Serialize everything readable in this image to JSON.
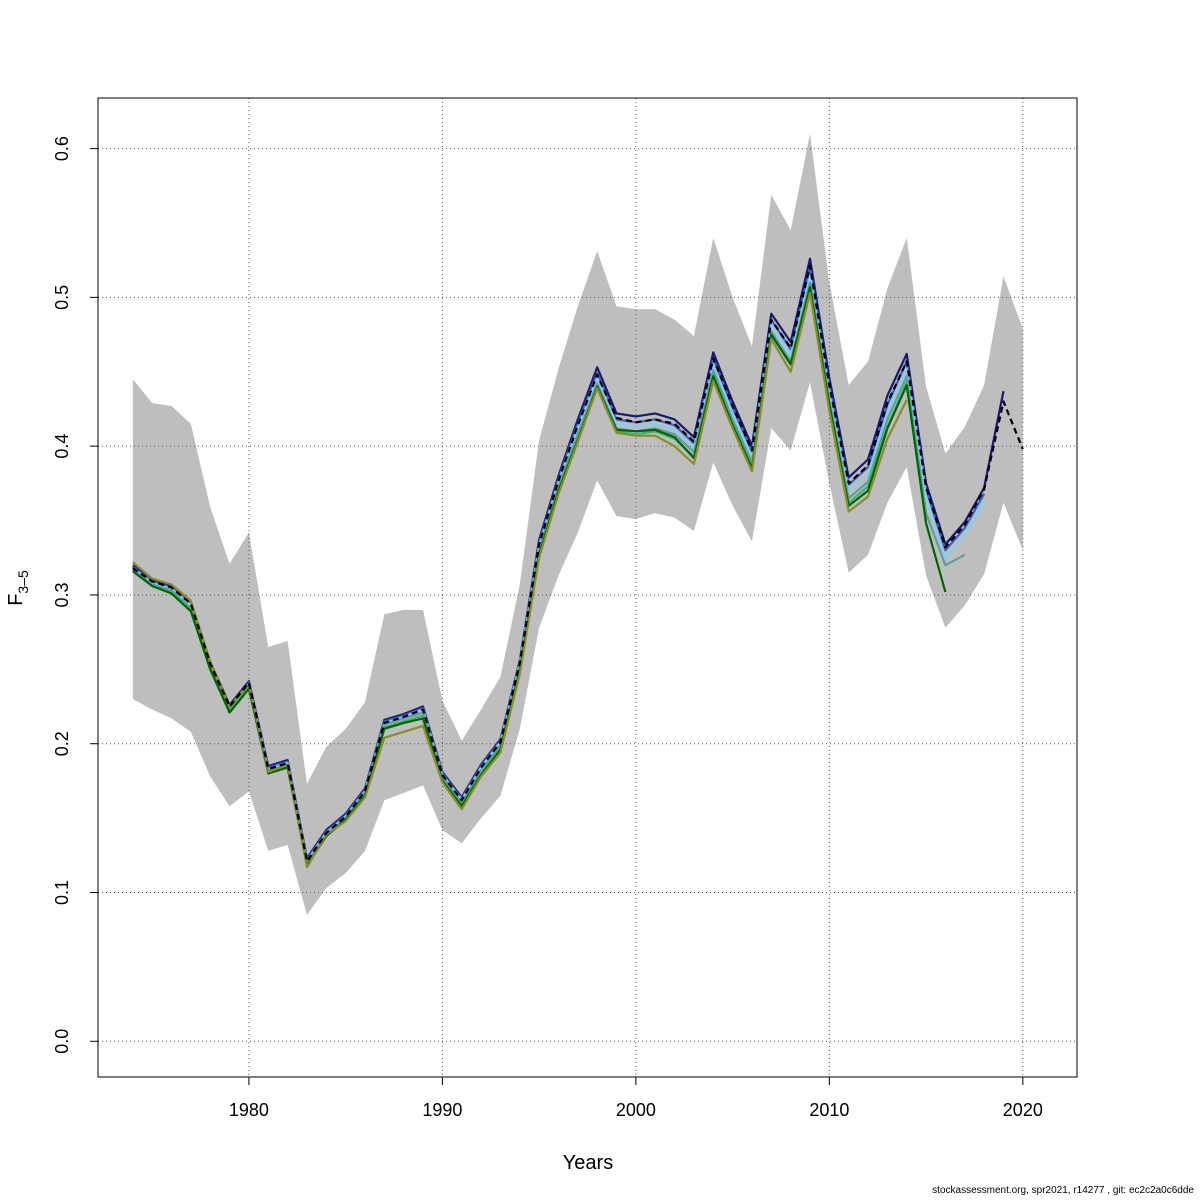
{
  "chart_data": {
    "type": "line",
    "title": "",
    "xlabel": "Years",
    "ylabel_main": "F",
    "ylabel_sub": "3–5",
    "xlim": [
      1972.2,
      2022.8
    ],
    "ylim": [
      -0.024,
      0.634
    ],
    "x_ticks": [
      1980,
      1990,
      2000,
      2010,
      2020
    ],
    "x_tick_labels": [
      "1980",
      "1990",
      "2000",
      "2010",
      "2020"
    ],
    "y_ticks": [
      0.0,
      0.1,
      0.2,
      0.3,
      0.4,
      0.5,
      0.6
    ],
    "y_tick_labels": [
      "0.0",
      "0.1",
      "0.2",
      "0.3",
      "0.4",
      "0.5",
      "0.6"
    ],
    "grid": true,
    "band_color": "#bebebe",
    "confidence_band": {
      "x": [
        1974,
        1975,
        1976,
        1977,
        1978,
        1979,
        1980,
        1981,
        1982,
        1983,
        1984,
        1985,
        1986,
        1987,
        1988,
        1989,
        1990,
        1991,
        1992,
        1993,
        1994,
        1995,
        1996,
        1997,
        1998,
        1999,
        2000,
        2001,
        2002,
        2003,
        2004,
        2005,
        2006,
        2007,
        2008,
        2009,
        2010,
        2011,
        2012,
        2013,
        2014,
        2015,
        2016,
        2017,
        2018,
        2019,
        2020
      ],
      "lower": [
        0.23,
        0.223,
        0.217,
        0.208,
        0.178,
        0.158,
        0.168,
        0.128,
        0.132,
        0.085,
        0.103,
        0.113,
        0.128,
        0.162,
        0.167,
        0.172,
        0.142,
        0.133,
        0.15,
        0.165,
        0.21,
        0.278,
        0.313,
        0.342,
        0.377,
        0.353,
        0.351,
        0.355,
        0.352,
        0.343,
        0.389,
        0.36,
        0.336,
        0.412,
        0.397,
        0.443,
        0.375,
        0.315,
        0.327,
        0.362,
        0.386,
        0.313,
        0.278,
        0.293,
        0.314,
        0.362,
        0.33
      ],
      "upper": [
        0.445,
        0.429,
        0.427,
        0.415,
        0.359,
        0.321,
        0.342,
        0.265,
        0.269,
        0.173,
        0.198,
        0.21,
        0.228,
        0.287,
        0.29,
        0.29,
        0.229,
        0.202,
        0.223,
        0.245,
        0.307,
        0.404,
        0.452,
        0.494,
        0.531,
        0.494,
        0.492,
        0.492,
        0.485,
        0.474,
        0.54,
        0.5,
        0.467,
        0.569,
        0.545,
        0.61,
        0.51,
        0.441,
        0.457,
        0.506,
        0.54,
        0.44,
        0.395,
        0.413,
        0.441,
        0.514,
        0.479
      ]
    },
    "series": [
      {
        "color": "#191970",
        "dashed": false,
        "x": [
          1974,
          1975,
          1976,
          1977,
          1978,
          1979,
          1980,
          1981,
          1982,
          1983,
          1984,
          1985,
          1986,
          1987,
          1988,
          1989,
          1990,
          1991,
          1992,
          1993,
          1994,
          1995,
          1996,
          1997,
          1998,
          1999,
          2000,
          2001,
          2002,
          2003,
          2004,
          2005,
          2006,
          2007,
          2008,
          2009,
          2010,
          2011,
          2012,
          2013,
          2014,
          2015,
          2016,
          2017,
          2018,
          2019
        ],
        "values": [
          0.32,
          0.31,
          0.306,
          0.295,
          0.255,
          0.226,
          0.242,
          0.185,
          0.189,
          0.123,
          0.142,
          0.153,
          0.17,
          0.216,
          0.22,
          0.225,
          0.181,
          0.164,
          0.186,
          0.203,
          0.256,
          0.337,
          0.38,
          0.418,
          0.453,
          0.422,
          0.42,
          0.422,
          0.418,
          0.406,
          0.463,
          0.43,
          0.4,
          0.489,
          0.47,
          0.526,
          0.446,
          0.379,
          0.391,
          0.434,
          0.462,
          0.375,
          0.334,
          0.349,
          0.372,
          0.437
        ]
      },
      {
        "color": "#3a5fcd",
        "dashed": false,
        "x": [
          1974,
          1975,
          1976,
          1977,
          1978,
          1979,
          1980,
          1981,
          1982,
          1983,
          1984,
          1985,
          1986,
          1987,
          1988,
          1989,
          1990,
          1991,
          1992,
          1993,
          1994,
          1995,
          1996,
          1997,
          1998,
          1999,
          2000,
          2001,
          2002,
          2003,
          2004,
          2005,
          2006,
          2007,
          2008,
          2009,
          2010,
          2011,
          2012,
          2013,
          2014,
          2015,
          2016,
          2017,
          2018
        ],
        "values": [
          0.319,
          0.309,
          0.305,
          0.294,
          0.254,
          0.225,
          0.241,
          0.184,
          0.188,
          0.122,
          0.141,
          0.152,
          0.169,
          0.215,
          0.219,
          0.224,
          0.18,
          0.163,
          0.185,
          0.202,
          0.255,
          0.335,
          0.378,
          0.415,
          0.449,
          0.418,
          0.416,
          0.418,
          0.414,
          0.402,
          0.459,
          0.426,
          0.396,
          0.485,
          0.465,
          0.52,
          0.441,
          0.374,
          0.386,
          0.428,
          0.457,
          0.371,
          0.33,
          0.345,
          0.368
        ]
      },
      {
        "color": "#87ceeb",
        "dashed": false,
        "x": [
          1974,
          1975,
          1976,
          1977,
          1978,
          1979,
          1980,
          1981,
          1982,
          1983,
          1984,
          1985,
          1986,
          1987,
          1988,
          1989,
          1990,
          1991,
          1992,
          1993,
          1994,
          1995,
          1996,
          1997,
          1998,
          1999,
          2000,
          2001,
          2002,
          2003,
          2004,
          2005,
          2006,
          2007,
          2008,
          2009,
          2010,
          2011,
          2012,
          2013,
          2014,
          2015,
          2016,
          2017,
          2018
        ],
        "values": [
          0.318,
          0.308,
          0.304,
          0.293,
          0.253,
          0.224,
          0.24,
          0.183,
          0.187,
          0.121,
          0.14,
          0.151,
          0.168,
          0.214,
          0.218,
          0.223,
          0.179,
          0.162,
          0.184,
          0.201,
          0.254,
          0.333,
          0.376,
          0.412,
          0.446,
          0.415,
          0.413,
          0.415,
          0.411,
          0.399,
          0.455,
          0.422,
          0.393,
          0.481,
          0.461,
          0.515,
          0.436,
          0.37,
          0.381,
          0.423,
          0.452,
          0.366,
          0.325,
          0.34,
          0.363
        ]
      },
      {
        "color": "#5f9ea0",
        "dashed": false,
        "x": [
          1974,
          1975,
          1976,
          1977,
          1978,
          1979,
          1980,
          1981,
          1982,
          1983,
          1984,
          1985,
          1986,
          1987,
          1988,
          1989,
          1990,
          1991,
          1992,
          1993,
          1994,
          1995,
          1996,
          1997,
          1998,
          1999,
          2000,
          2001,
          2002,
          2003,
          2004,
          2005,
          2006,
          2007,
          2008,
          2009,
          2010,
          2011,
          2012,
          2013,
          2014,
          2015,
          2016,
          2017
        ],
        "values": [
          0.317,
          0.307,
          0.303,
          0.291,
          0.252,
          0.223,
          0.239,
          0.182,
          0.186,
          0.12,
          0.139,
          0.15,
          0.167,
          0.213,
          0.217,
          0.221,
          0.178,
          0.16,
          0.182,
          0.199,
          0.252,
          0.33,
          0.373,
          0.408,
          0.442,
          0.412,
          0.41,
          0.412,
          0.408,
          0.396,
          0.451,
          0.418,
          0.389,
          0.477,
          0.457,
          0.51,
          0.431,
          0.365,
          0.376,
          0.418,
          0.447,
          0.355,
          0.32,
          0.327
        ]
      },
      {
        "color": "#3cb371",
        "dashed": false,
        "x": [
          1974,
          1975,
          1976,
          1977,
          1978,
          1979,
          1980,
          1981,
          1982,
          1983,
          1984,
          1985,
          1986,
          1987,
          1988,
          1989,
          1990,
          1991,
          1992,
          1993,
          1994,
          1995,
          1996,
          1997,
          1998,
          1999,
          2000,
          2001,
          2002,
          2003,
          2004,
          2005,
          2006,
          2007,
          2008,
          2009,
          2010,
          2011,
          2012,
          2013,
          2014,
          2015
        ],
        "values": [
          0.316,
          0.306,
          0.302,
          0.29,
          0.251,
          0.222,
          0.238,
          0.181,
          0.185,
          0.119,
          0.138,
          0.149,
          0.166,
          0.211,
          0.215,
          0.219,
          0.176,
          0.159,
          0.18,
          0.197,
          0.25,
          0.328,
          0.371,
          0.405,
          0.44,
          0.41,
          0.408,
          0.41,
          0.405,
          0.393,
          0.448,
          0.415,
          0.386,
          0.475,
          0.455,
          0.507,
          0.428,
          0.362,
          0.373,
          0.413,
          0.443,
          0.35
        ]
      },
      {
        "color": "#006400",
        "dashed": false,
        "x": [
          1974,
          1975,
          1976,
          1977,
          1978,
          1979,
          1980,
          1981,
          1982,
          1983,
          1984,
          1985,
          1986,
          1987,
          1988,
          1989,
          1990,
          1991,
          1992,
          1993,
          1994,
          1995,
          1996,
          1997,
          1998,
          1999,
          2000,
          2001,
          2002,
          2003,
          2004,
          2005,
          2006,
          2007,
          2008,
          2009,
          2010,
          2011,
          2012,
          2013,
          2014,
          2015,
          2016
        ],
        "values": [
          0.316,
          0.306,
          0.301,
          0.289,
          0.25,
          0.221,
          0.237,
          0.18,
          0.184,
          0.118,
          0.138,
          0.149,
          0.165,
          0.21,
          0.214,
          0.217,
          0.175,
          0.158,
          0.179,
          0.196,
          0.249,
          0.327,
          0.37,
          0.404,
          0.44,
          0.411,
          0.41,
          0.411,
          0.406,
          0.392,
          0.447,
          0.414,
          0.385,
          0.475,
          0.455,
          0.507,
          0.428,
          0.36,
          0.37,
          0.412,
          0.441,
          0.348,
          0.302
        ]
      },
      {
        "color": "#8b8b2b",
        "dashed": false,
        "x": [
          1974,
          1975,
          1976,
          1977,
          1978,
          1979,
          1980,
          1981,
          1982,
          1983,
          1984,
          1985,
          1986,
          1987,
          1988,
          1989,
          1990,
          1991,
          1992,
          1993,
          1994,
          1995,
          1996,
          1997,
          1998,
          1999,
          2000,
          2001,
          2002,
          2003,
          2004,
          2005,
          2006,
          2007,
          2008,
          2009,
          2010,
          2011,
          2012,
          2013,
          2014
        ],
        "values": [
          0.322,
          0.311,
          0.307,
          0.296,
          0.255,
          0.225,
          0.24,
          0.181,
          0.186,
          0.117,
          0.139,
          0.148,
          0.164,
          0.204,
          0.208,
          0.212,
          0.174,
          0.156,
          0.178,
          0.194,
          0.247,
          0.325,
          0.368,
          0.403,
          0.439,
          0.409,
          0.407,
          0.407,
          0.4,
          0.388,
          0.444,
          0.412,
          0.383,
          0.472,
          0.45,
          0.503,
          0.424,
          0.356,
          0.366,
          0.405,
          0.431
        ]
      },
      {
        "color": "#000000",
        "dashed": true,
        "x": [
          1974,
          1975,
          1976,
          1977,
          1978,
          1979,
          1980,
          1981,
          1982,
          1983,
          1984,
          1985,
          1986,
          1987,
          1988,
          1989,
          1990,
          1991,
          1992,
          1993,
          1994,
          1995,
          1996,
          1997,
          1998,
          1999,
          2000,
          2001,
          2002,
          2003,
          2004,
          2005,
          2006,
          2007,
          2008,
          2009,
          2010,
          2011,
          2012,
          2013,
          2014,
          2015,
          2016,
          2017,
          2018,
          2019,
          2020
        ],
        "values": [
          0.318,
          0.309,
          0.305,
          0.294,
          0.254,
          0.225,
          0.241,
          0.183,
          0.187,
          0.121,
          0.14,
          0.151,
          0.168,
          0.214,
          0.218,
          0.223,
          0.179,
          0.162,
          0.184,
          0.201,
          0.254,
          0.334,
          0.377,
          0.414,
          0.448,
          0.419,
          0.416,
          0.418,
          0.415,
          0.403,
          0.459,
          0.427,
          0.397,
          0.485,
          0.466,
          0.521,
          0.441,
          0.375,
          0.387,
          0.429,
          0.457,
          0.372,
          0.332,
          0.347,
          0.371,
          0.43,
          0.398
        ]
      }
    ]
  },
  "footer": "stockassessment.org, spr2021, r14277 , git: ec2c2a0c6dde"
}
